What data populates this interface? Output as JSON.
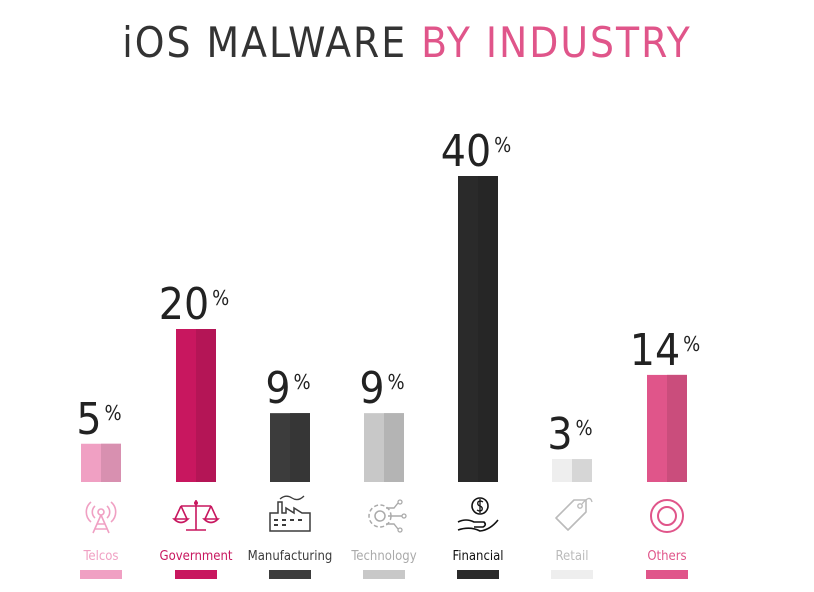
{
  "title": {
    "part1": "iOS MALWARE",
    "part2": "BY INDUSTRY"
  },
  "chart_data": {
    "type": "bar",
    "title": "iOS MALWARE BY INDUSTRY",
    "unit": "%",
    "categories": [
      "Telcos",
      "Government",
      "Manufacturing",
      "Technology",
      "Financial",
      "Retail",
      "Others"
    ],
    "values": [
      5,
      20,
      9,
      9,
      40,
      3,
      14
    ],
    "ylim": [
      0,
      40
    ],
    "grid": false,
    "legend": "none",
    "colors": [
      "#f0a0c3",
      "#c8175f",
      "#3c3c3c",
      "#c8c8c8",
      "#2a2a2a",
      "#eeeeee",
      "#e0558a"
    ],
    "label_colors": [
      "#f0a0c3",
      "#c8175f",
      "#3c3c3c",
      "#aaaaaa",
      "#111111",
      "#bbbbbb",
      "#e0558a"
    ],
    "icons": [
      "radio-tower-icon",
      "scales-icon",
      "factory-icon",
      "gear-circuit-icon",
      "money-hand-icon",
      "price-tag-icon",
      "target-ring-icon"
    ]
  }
}
